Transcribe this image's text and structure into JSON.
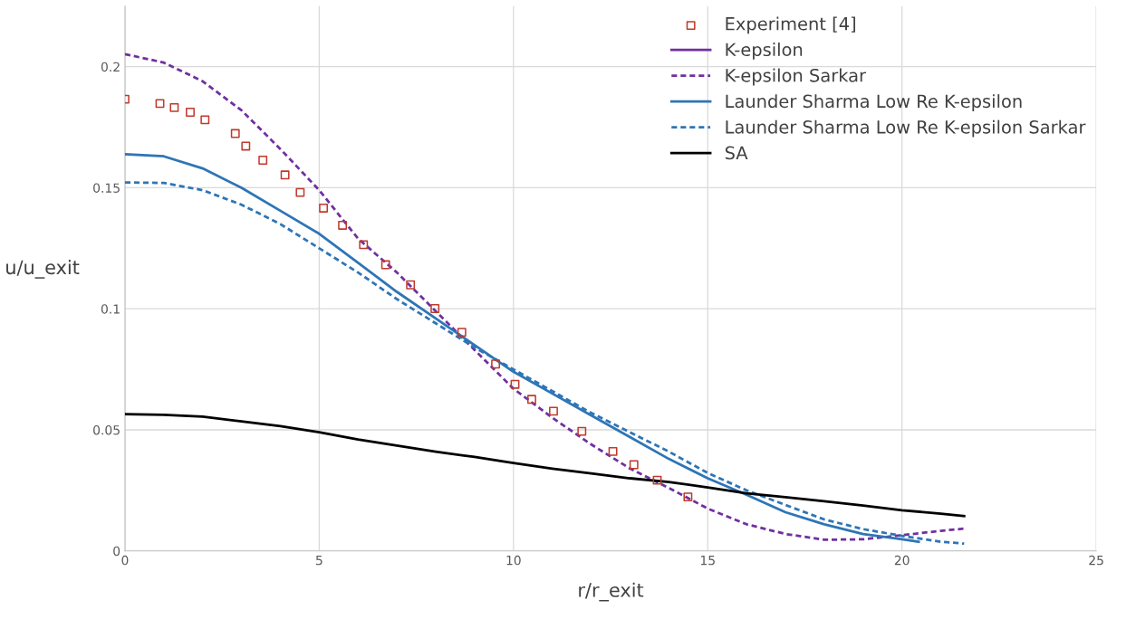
{
  "chart_data": {
    "type": "line",
    "xlabel": "r/r_exit",
    "ylabel": "u/u_exit",
    "xlim": [
      0,
      25
    ],
    "ylim": [
      0,
      0.225
    ],
    "xticks": [
      0,
      5,
      10,
      15,
      20,
      25
    ],
    "yticks": [
      0,
      0.05,
      0.1,
      0.15,
      0.2
    ],
    "grid": true,
    "legend": "top right",
    "series": [
      {
        "name": "Experiment [4]",
        "type": "scatter",
        "marker": "square",
        "color": "#c0392b",
        "x": [
          0,
          0.9,
          1.27,
          1.68,
          2.06,
          2.84,
          3.11,
          3.55,
          4.12,
          4.51,
          5.11,
          5.6,
          6.14,
          6.71,
          7.35,
          7.98,
          8.67,
          9.54,
          10.04,
          10.47,
          11.03,
          11.76,
          12.56,
          13.1,
          13.7,
          14.49
        ],
        "values": [
          0.1866,
          0.1848,
          0.1831,
          0.1812,
          0.1781,
          0.1724,
          0.1672,
          0.1614,
          0.1553,
          0.1481,
          0.1416,
          0.1345,
          0.1265,
          0.1182,
          0.1099,
          0.1001,
          0.0903,
          0.0772,
          0.0688,
          0.0626,
          0.0577,
          0.0494,
          0.0411,
          0.0356,
          0.0292,
          0.0223
        ]
      },
      {
        "name": "K-epsilon",
        "line_style": "solid",
        "color": "#7030a0"
      },
      {
        "name": "K-epsilon Sarkar",
        "line_style": "dashed",
        "color": "#7030a0",
        "x": [
          0,
          1,
          2,
          3,
          4,
          5,
          6,
          7,
          8,
          9,
          10,
          11,
          12,
          13,
          14,
          15,
          16,
          17,
          18,
          19,
          20,
          21,
          21.6
        ],
        "values": [
          0.2052,
          0.2017,
          0.194,
          0.182,
          0.166,
          0.149,
          0.129,
          0.115,
          0.099,
          0.083,
          0.067,
          0.055,
          0.044,
          0.034,
          0.026,
          0.0175,
          0.011,
          0.007,
          0.0046,
          0.0048,
          0.0065,
          0.0083,
          0.0092
        ]
      },
      {
        "name": "Launder Sharma Low Re K-epsilon",
        "line_style": "solid",
        "color": "#2e75b6",
        "x": [
          0,
          1,
          2,
          3,
          4,
          5,
          6,
          7,
          8,
          9,
          10,
          11,
          12,
          13,
          14,
          15,
          16,
          17,
          18,
          19,
          20,
          20.43
        ],
        "values": [
          0.1639,
          0.163,
          0.158,
          0.15,
          0.1405,
          0.131,
          0.119,
          0.107,
          0.096,
          0.085,
          0.074,
          0.065,
          0.056,
          0.047,
          0.038,
          0.03,
          0.0232,
          0.016,
          0.011,
          0.007,
          0.0048,
          0.0038
        ]
      },
      {
        "name": "Launder Sharma Low Re K-epsilon Sarkar",
        "line_style": "dashed",
        "color": "#2e75b6",
        "x": [
          0,
          1,
          2,
          3,
          4,
          5,
          6,
          7,
          8,
          9,
          10,
          11,
          12,
          13,
          14,
          15,
          16,
          17,
          18,
          19,
          20,
          21,
          21.6
        ],
        "values": [
          0.1522,
          0.152,
          0.149,
          0.143,
          0.135,
          0.125,
          0.115,
          0.104,
          0.094,
          0.084,
          0.075,
          0.066,
          0.057,
          0.049,
          0.041,
          0.0322,
          0.025,
          0.019,
          0.013,
          0.009,
          0.0062,
          0.0038,
          0.003
        ]
      },
      {
        "name": "SA",
        "line_style": "solid",
        "color": "#000000",
        "x": [
          0,
          1,
          2,
          3,
          4,
          5,
          6,
          7,
          8,
          9,
          10,
          11,
          12,
          13,
          14,
          15,
          16,
          17,
          18,
          19,
          20,
          21,
          21.6
        ],
        "values": [
          0.0565,
          0.0562,
          0.0555,
          0.0535,
          0.0515,
          0.049,
          0.046,
          0.0435,
          0.041,
          0.0388,
          0.0363,
          0.034,
          0.032,
          0.03,
          0.0285,
          0.0262,
          0.0238,
          0.0222,
          0.0205,
          0.0187,
          0.0168,
          0.0154,
          0.0144
        ]
      }
    ]
  }
}
